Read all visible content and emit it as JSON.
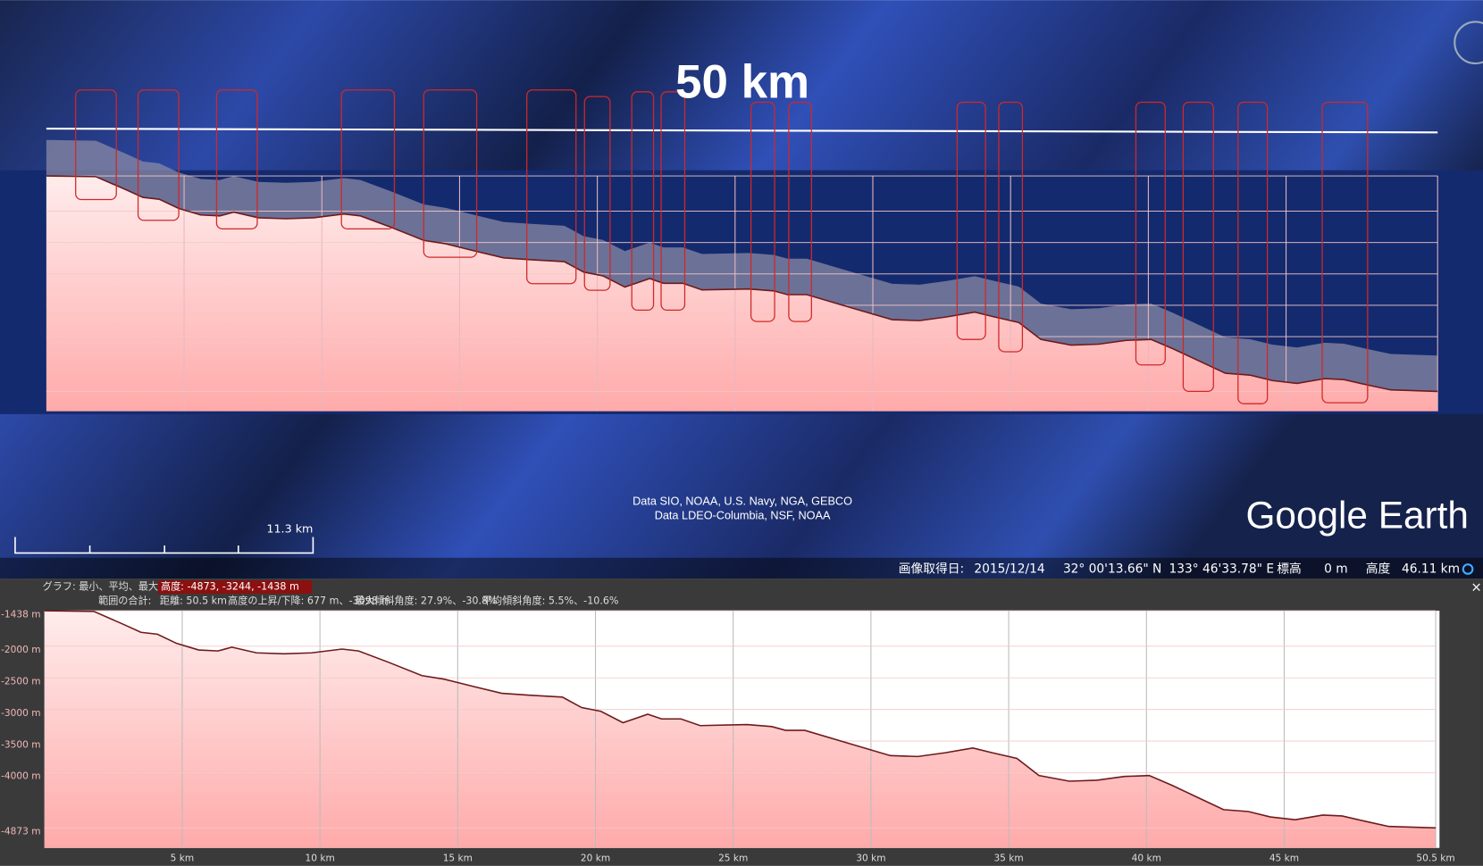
{
  "map": {
    "scale_title": "50 km",
    "attribution": [
      "Data SIO, NOAA, U.S. Navy, NGA, GEBCO",
      "Data LDEO-Columbia, NSF, NOAA"
    ],
    "scale_bar": "11.3 km",
    "logo": "Google Earth"
  },
  "status_bar": {
    "date_label": "画像取得日:",
    "date": "2015/12/14",
    "lat": "32° 00'13.66\" N",
    "lon": "133° 46'33.78\" E",
    "elev_label": "標高",
    "elev": "0 m",
    "alt_label": "高度",
    "alt": "46.11 km"
  },
  "stats": {
    "graph_label": "グラフ: 最小、平均、最大",
    "elevation": "高度: -4873, -3244, -1438 m",
    "range_label": "範囲の合計:",
    "distance": "距離: 50.5 km",
    "gain_loss": "高度の上昇/下降: 677 m、-3098 m",
    "max_slope": "最大傾斜角度: 27.9%、-30.8%",
    "avg_slope": "平均傾斜角度: 5.5%、-10.6%",
    "close": "×"
  },
  "profile": {
    "type": "area",
    "color": "#6e1a1a",
    "x": [
      0,
      1.8,
      2.9,
      3.5,
      4.1,
      4.8,
      5.6,
      6.3,
      6.8,
      7.7,
      8.7,
      9.7,
      10.8,
      11.4,
      12.5,
      13.7,
      14.5,
      15.6,
      16.6,
      17.6,
      18.8,
      19.5,
      20.2,
      21.0,
      21.9,
      22.4,
      23.1,
      23.8,
      25.5,
      26.4,
      26.9,
      27.6,
      29.3,
      30.7,
      31.7,
      32.7,
      33.7,
      34.4,
      35.3,
      36.1,
      37.2,
      38.2,
      39.2,
      40.1,
      40.9,
      42.0,
      42.8,
      43.7,
      44.5,
      45.4,
      46.4,
      47.1,
      48.0,
      48.8,
      50.5
    ],
    "values": [
      -1438,
      -1450,
      -1660,
      -1780,
      -1810,
      -1955,
      -2060,
      -2075,
      -2015,
      -2105,
      -2120,
      -2105,
      -2045,
      -2075,
      -2255,
      -2465,
      -2520,
      -2640,
      -2745,
      -2775,
      -2805,
      -2970,
      -3030,
      -3210,
      -3075,
      -3150,
      -3150,
      -3255,
      -3240,
      -3270,
      -3330,
      -3330,
      -3550,
      -3730,
      -3745,
      -3685,
      -3610,
      -3685,
      -3775,
      -4045,
      -4135,
      -4120,
      -4060,
      -4045,
      -4195,
      -4420,
      -4585,
      -4615,
      -4700,
      -4745,
      -4670,
      -4685,
      -4775,
      -4850,
      -4873
    ],
    "xlim": [
      0,
      50.5
    ],
    "ylim": [
      -5190,
      -1438
    ],
    "xticks": [
      {
        "value": 5,
        "label": "5 km"
      },
      {
        "value": 10,
        "label": "10 km"
      },
      {
        "value": 15,
        "label": "15 km"
      },
      {
        "value": 20,
        "label": "20 km"
      },
      {
        "value": 25,
        "label": "25 km"
      },
      {
        "value": 30,
        "label": "30 km"
      },
      {
        "value": 35,
        "label": "35 km"
      },
      {
        "value": 40,
        "label": "40 km"
      },
      {
        "value": 45,
        "label": "45 km"
      },
      {
        "value": 50.5,
        "label": "50.5 km"
      }
    ],
    "yticks": [
      {
        "value": -1438,
        "label": "-1438 m"
      },
      {
        "value": -2000,
        "label": "-2000 m"
      },
      {
        "value": -2500,
        "label": "-2500 m"
      },
      {
        "value": -3000,
        "label": "-3000 m"
      },
      {
        "value": -3500,
        "label": "-3500 m"
      },
      {
        "value": -4000,
        "label": "-4000 m"
      },
      {
        "value": -4873,
        "label": "-4873 m"
      }
    ],
    "grid": true
  }
}
